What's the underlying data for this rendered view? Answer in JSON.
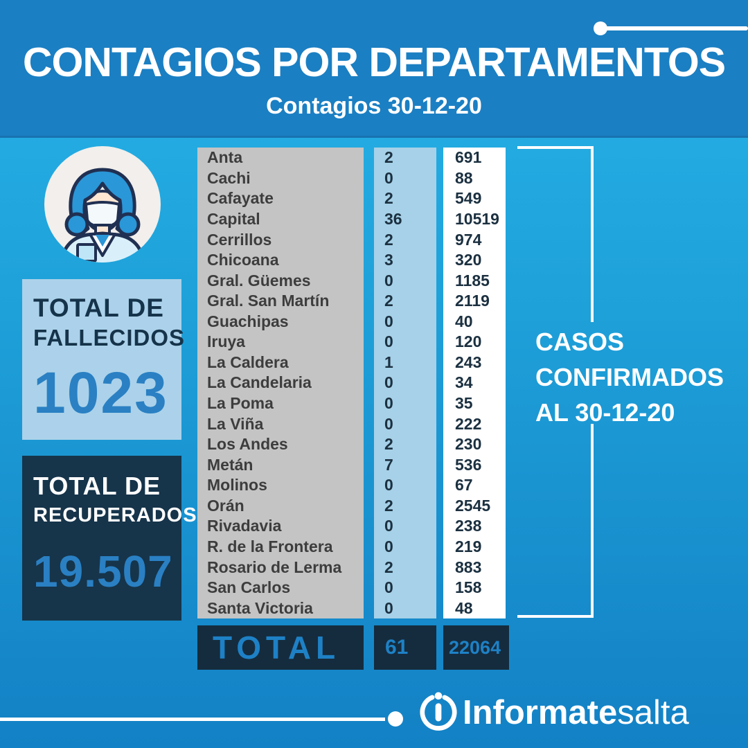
{
  "header": {
    "title": "CONTAGIOS POR DEPARTAMENTOS",
    "subtitle": "Contagios 30-12-20"
  },
  "deaths_card": {
    "label_line1": "TOTAL DE",
    "label_line2": "FALLECIDOS",
    "value": "1023"
  },
  "recovered_card": {
    "label_line1": "TOTAL DE",
    "label_line2": "RECUPERADOS",
    "value": "19.507"
  },
  "annotation": {
    "line1": "CASOS",
    "line2": "CONFIRMADOS",
    "line3": "AL 30-12-20"
  },
  "footer": {
    "brand_bold": "Informate",
    "brand_light": "salta"
  },
  "icons": {
    "nurse": "nurse-with-face-mask-icon",
    "info": "info-circle-icon"
  },
  "colors": {
    "header_bg": "#1b7fc3",
    "body_gradient_top": "#27b3e9",
    "body_gradient_bottom": "#1381c5",
    "card_light_bg": "#abd2ea",
    "card_dark_bg": "#16344a",
    "accent_blue": "#2a80c3",
    "name_column_bg": "#c4c4c4",
    "daily_column_bg": "#a6d1e8",
    "confirmed_column_bg": "#ffffff",
    "total_row_bg": "#152c3e",
    "total_row_text": "#1e81c6",
    "table_number_text": "#1b3040",
    "department_text": "#3d3d3d",
    "white": "#ffffff"
  },
  "chart_data": {
    "type": "table",
    "title": "CONTAGIOS POR DEPARTAMENTOS",
    "subtitle": "Contagios 30-12-20",
    "legend": [
      "Contagios 30-12-20",
      "Casos confirmados al 30-12-20"
    ],
    "rows": [
      {
        "name": "Anta",
        "daily": "2",
        "confirmed": "691"
      },
      {
        "name": "Cachi",
        "daily": "0",
        "confirmed": "88"
      },
      {
        "name": "Cafayate",
        "daily": "2",
        "confirmed": "549"
      },
      {
        "name": "Capital",
        "daily": "36",
        "confirmed": "10519"
      },
      {
        "name": "Cerrillos",
        "daily": "2",
        "confirmed": "974"
      },
      {
        "name": "Chicoana",
        "daily": "3",
        "confirmed": "320"
      },
      {
        "name": "Gral. Güemes",
        "daily": "0",
        "confirmed": "1185"
      },
      {
        "name": "Gral. San Martín",
        "daily": "2",
        "confirmed": "2119"
      },
      {
        "name": "Guachipas",
        "daily": "0",
        "confirmed": "40"
      },
      {
        "name": "Iruya",
        "daily": "0",
        "confirmed": "120"
      },
      {
        "name": "La Caldera",
        "daily": "1",
        "confirmed": "243"
      },
      {
        "name": "La Candelaria",
        "daily": "0",
        "confirmed": "34"
      },
      {
        "name": "La Poma",
        "daily": "0",
        "confirmed": "35"
      },
      {
        "name": "La Viña",
        "daily": "0",
        "confirmed": "222"
      },
      {
        "name": "Los Andes",
        "daily": "2",
        "confirmed": "230"
      },
      {
        "name": "Metán",
        "daily": "7",
        "confirmed": "536"
      },
      {
        "name": "Molinos",
        "daily": "0",
        "confirmed": "67"
      },
      {
        "name": "Orán",
        "daily": "2",
        "confirmed": "2545"
      },
      {
        "name": "Rivadavia",
        "daily": "0",
        "confirmed": "238"
      },
      {
        "name": "R. de la Frontera",
        "daily": "0",
        "confirmed": "219"
      },
      {
        "name": "Rosario de Lerma",
        "daily": "2",
        "confirmed": "883"
      },
      {
        "name": "San Carlos",
        "daily": "0",
        "confirmed": "158"
      },
      {
        "name": "Santa Victoria",
        "daily": "0",
        "confirmed": "48"
      }
    ],
    "total": {
      "label": "TOTAL",
      "daily": "61",
      "confirmed": "22064"
    }
  }
}
